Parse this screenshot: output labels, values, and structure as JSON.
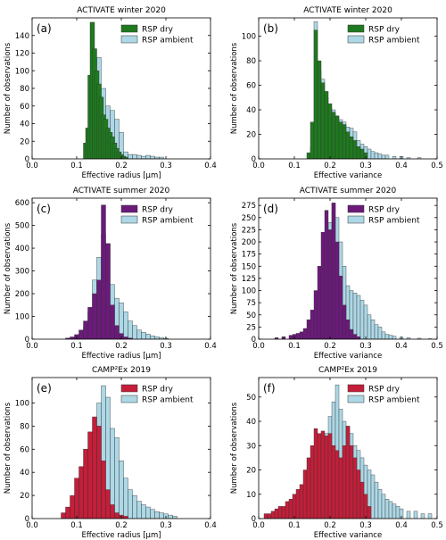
{
  "figure": {
    "colors": {
      "winter_dry": "#1f7a1f",
      "summer_dry": "#6b1a7a",
      "camp_dry": "#c41e3a",
      "ambient": "#add8e6",
      "edge": "#333333"
    }
  },
  "chart_data": [
    {
      "type": "bar",
      "panel": "(a)",
      "title": "ACTIVATE winter 2020",
      "xlabel": "Effective radius [μm]",
      "ylabel": "Number of observations",
      "xlim": [
        0.0,
        0.4
      ],
      "ylim": [
        0,
        160
      ],
      "xticks": [
        "0.0",
        "0.1",
        "0.2",
        "0.3",
        "0.4"
      ],
      "yticks": [
        0,
        20,
        40,
        60,
        80,
        100,
        120,
        140
      ],
      "legend_position": "top-right",
      "bin_width": 0.01,
      "series": [
        {
          "name": "RSP dry",
          "color_key": "winter_dry",
          "x": [
            0.12,
            0.125,
            0.13,
            0.135,
            0.14,
            0.145,
            0.15,
            0.155,
            0.16,
            0.165,
            0.17,
            0.175,
            0.18,
            0.185,
            0.19,
            0.195,
            0.2,
            0.205,
            0.21
          ],
          "values": [
            18,
            35,
            95,
            155,
            125,
            100,
            85,
            70,
            50,
            45,
            35,
            30,
            25,
            18,
            12,
            8,
            5,
            3,
            2
          ]
        },
        {
          "name": "RSP ambient",
          "color_key": "ambient",
          "x": [
            0.13,
            0.14,
            0.15,
            0.16,
            0.17,
            0.18,
            0.19,
            0.2,
            0.21,
            0.22,
            0.23,
            0.24,
            0.25,
            0.26,
            0.27,
            0.28,
            0.29
          ],
          "values": [
            30,
            90,
            115,
            80,
            60,
            55,
            45,
            30,
            8,
            5,
            5,
            4,
            3,
            4,
            3,
            2,
            2
          ]
        }
      ]
    },
    {
      "type": "bar",
      "panel": "(b)",
      "title": "ACTIVATE winter 2020",
      "xlabel": "Effective variance",
      "ylabel": "Number of observations",
      "xlim": [
        0.0,
        0.5
      ],
      "ylim": [
        0,
        115
      ],
      "xticks": [
        "0.0",
        "0.1",
        "0.2",
        "0.3",
        "0.4",
        "0.5"
      ],
      "yticks": [
        0,
        20,
        40,
        60,
        80,
        100
      ],
      "legend_position": "top-right",
      "bin_width": 0.01,
      "series": [
        {
          "name": "RSP dry",
          "color_key": "winter_dry",
          "x": [
            0.14,
            0.15,
            0.16,
            0.17,
            0.18,
            0.19,
            0.2,
            0.21,
            0.22,
            0.23,
            0.24,
            0.25,
            0.26,
            0.27,
            0.28,
            0.29,
            0.3
          ],
          "values": [
            5,
            30,
            105,
            80,
            62,
            55,
            45,
            38,
            35,
            30,
            28,
            22,
            18,
            15,
            10,
            8,
            5
          ]
        },
        {
          "name": "RSP ambient",
          "color_key": "ambient",
          "x": [
            0.15,
            0.16,
            0.17,
            0.18,
            0.19,
            0.2,
            0.21,
            0.22,
            0.23,
            0.24,
            0.25,
            0.26,
            0.27,
            0.28,
            0.29,
            0.3,
            0.31,
            0.32,
            0.33,
            0.34,
            0.35,
            0.36,
            0.38,
            0.4,
            0.42,
            0.45
          ],
          "values": [
            10,
            112,
            72,
            65,
            50,
            42,
            40,
            35,
            32,
            30,
            26,
            25,
            22,
            15,
            12,
            10,
            8,
            6,
            5,
            4,
            3,
            3,
            2,
            2,
            1,
            1
          ]
        }
      ]
    },
    {
      "type": "bar",
      "panel": "(c)",
      "title": "ACTIVATE summer 2020",
      "xlabel": "Effective radius [μm]",
      "ylabel": "Number of observations",
      "xlim": [
        0.0,
        0.4
      ],
      "ylim": [
        0,
        620
      ],
      "xticks": [
        "0.0",
        "0.1",
        "0.2",
        "0.3",
        "0.4"
      ],
      "yticks": [
        0,
        100,
        200,
        300,
        400,
        500,
        600
      ],
      "legend_position": "top-right",
      "bin_width": 0.01,
      "series": [
        {
          "name": "RSP dry",
          "color_key": "summer_dry",
          "x": [
            0.08,
            0.09,
            0.1,
            0.11,
            0.12,
            0.13,
            0.14,
            0.15,
            0.16,
            0.17,
            0.18,
            0.19,
            0.2,
            0.21,
            0.22
          ],
          "values": [
            5,
            10,
            20,
            40,
            80,
            140,
            200,
            260,
            590,
            420,
            150,
            60,
            25,
            10,
            5
          ]
        },
        {
          "name": "RSP ambient",
          "color_key": "ambient",
          "x": [
            0.1,
            0.11,
            0.12,
            0.13,
            0.14,
            0.15,
            0.16,
            0.17,
            0.18,
            0.19,
            0.2,
            0.21,
            0.22,
            0.23,
            0.24,
            0.25,
            0.26,
            0.27,
            0.28,
            0.29,
            0.3
          ],
          "values": [
            10,
            25,
            55,
            120,
            260,
            360,
            460,
            420,
            240,
            180,
            160,
            120,
            80,
            60,
            40,
            30,
            22,
            15,
            10,
            6,
            4
          ]
        }
      ]
    },
    {
      "type": "bar",
      "panel": "(d)",
      "title": "ACTIVATE summer 2020",
      "xlabel": "Effective variance",
      "ylabel": "Number of observations",
      "xlim": [
        0.0,
        0.5
      ],
      "ylim": [
        0,
        290
      ],
      "xticks": [
        "0.0",
        "0.1",
        "0.2",
        "0.3",
        "0.4",
        "0.5"
      ],
      "yticks": [
        0,
        25,
        50,
        75,
        100,
        125,
        150,
        175,
        200,
        225,
        250,
        275
      ],
      "legend_position": "top-right",
      "bin_width": 0.01,
      "series": [
        {
          "name": "RSP dry",
          "color_key": "summer_dry",
          "x": [
            0.05,
            0.07,
            0.09,
            0.1,
            0.11,
            0.12,
            0.13,
            0.14,
            0.15,
            0.16,
            0.17,
            0.18,
            0.19,
            0.2,
            0.21,
            0.22,
            0.23,
            0.24,
            0.25,
            0.26,
            0.27,
            0.28
          ],
          "values": [
            3,
            5,
            8,
            10,
            12,
            15,
            22,
            40,
            60,
            100,
            150,
            220,
            265,
            225,
            280,
            200,
            130,
            70,
            40,
            20,
            10,
            5
          ]
        },
        {
          "name": "RSP ambient",
          "color_key": "ambient",
          "x": [
            0.15,
            0.16,
            0.17,
            0.18,
            0.19,
            0.2,
            0.21,
            0.22,
            0.23,
            0.24,
            0.25,
            0.26,
            0.27,
            0.28,
            0.29,
            0.3,
            0.31,
            0.32,
            0.33,
            0.34,
            0.35,
            0.36,
            0.37,
            0.38,
            0.4,
            0.42,
            0.45,
            0.48
          ],
          "values": [
            10,
            30,
            60,
            100,
            150,
            240,
            280,
            250,
            200,
            150,
            110,
            100,
            95,
            90,
            80,
            70,
            50,
            40,
            30,
            25,
            15,
            10,
            8,
            6,
            4,
            3,
            2,
            1
          ]
        }
      ]
    },
    {
      "type": "bar",
      "panel": "(e)",
      "title": "CAMP²Ex 2019",
      "xlabel": "Effective radius [μm]",
      "ylabel": "Number of observations",
      "xlim": [
        0.0,
        0.4
      ],
      "ylim": [
        0,
        122
      ],
      "xticks": [
        "0.0",
        "0.1",
        "0.2",
        "0.3",
        "0.4"
      ],
      "yticks": [
        0,
        20,
        40,
        60,
        80,
        100
      ],
      "legend_position": "top-right",
      "bin_width": 0.01,
      "series": [
        {
          "name": "RSP dry",
          "color_key": "camp_dry",
          "x": [
            0.07,
            0.08,
            0.09,
            0.1,
            0.11,
            0.12,
            0.13,
            0.14,
            0.15,
            0.16,
            0.17,
            0.18,
            0.19,
            0.2,
            0.21
          ],
          "values": [
            5,
            10,
            20,
            35,
            45,
            60,
            75,
            88,
            80,
            50,
            25,
            12,
            5,
            3,
            2
          ]
        },
        {
          "name": "RSP ambient",
          "color_key": "ambient",
          "x": [
            0.12,
            0.13,
            0.14,
            0.15,
            0.16,
            0.17,
            0.18,
            0.19,
            0.2,
            0.21,
            0.22,
            0.23,
            0.24,
            0.25,
            0.26,
            0.27,
            0.28,
            0.29,
            0.3,
            0.31,
            0.32
          ],
          "values": [
            5,
            20,
            55,
            100,
            115,
            105,
            78,
            70,
            50,
            35,
            25,
            20,
            15,
            12,
            10,
            8,
            6,
            5,
            4,
            3,
            2
          ]
        }
      ]
    },
    {
      "type": "bar",
      "panel": "(f)",
      "title": "CAMP²Ex 2019",
      "xlabel": "Effective variance",
      "ylabel": "Number of observations",
      "xlim": [
        0.0,
        0.5
      ],
      "ylim": [
        0,
        58
      ],
      "xticks": [
        "0.0",
        "0.1",
        "0.2",
        "0.3",
        "0.4",
        "0.5"
      ],
      "yticks": [
        0,
        10,
        20,
        30,
        40,
        50
      ],
      "legend_position": "top-right",
      "bin_width": 0.01,
      "series": [
        {
          "name": "RSP dry",
          "color_key": "camp_dry",
          "x": [
            0.02,
            0.03,
            0.04,
            0.05,
            0.06,
            0.07,
            0.08,
            0.09,
            0.1,
            0.11,
            0.12,
            0.13,
            0.14,
            0.15,
            0.16,
            0.17,
            0.18,
            0.19,
            0.2,
            0.21,
            0.22,
            0.23,
            0.24,
            0.25,
            0.26,
            0.27,
            0.28,
            0.29,
            0.3,
            0.31
          ],
          "values": [
            2,
            2,
            3,
            4,
            5,
            5,
            7,
            8,
            10,
            12,
            14,
            20,
            25,
            30,
            37,
            35,
            36,
            34,
            35,
            30,
            28,
            25,
            30,
            38,
            30,
            25,
            20,
            15,
            10,
            5
          ]
        },
        {
          "name": "RSP ambient",
          "color_key": "ambient",
          "x": [
            0.1,
            0.12,
            0.14,
            0.15,
            0.16,
            0.17,
            0.18,
            0.19,
            0.2,
            0.21,
            0.22,
            0.23,
            0.24,
            0.25,
            0.26,
            0.27,
            0.28,
            0.29,
            0.3,
            0.31,
            0.32,
            0.33,
            0.34,
            0.35,
            0.36,
            0.37,
            0.38,
            0.39,
            0.4,
            0.42,
            0.44,
            0.46,
            0.48
          ],
          "values": [
            2,
            3,
            5,
            10,
            15,
            20,
            25,
            35,
            42,
            48,
            55,
            45,
            40,
            38,
            35,
            30,
            28,
            25,
            22,
            20,
            18,
            15,
            12,
            10,
            8,
            7,
            6,
            5,
            4,
            3,
            3,
            2,
            2
          ]
        }
      ]
    }
  ]
}
